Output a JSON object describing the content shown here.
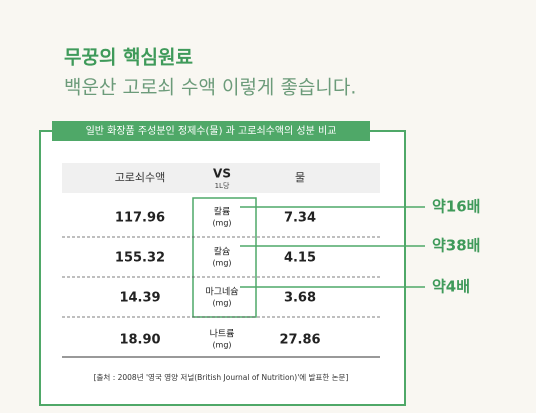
{
  "header": {
    "title": "무꿍의 핵심원료",
    "subtitle": "백운산 고로쇠 수액 이렇게 좋습니다."
  },
  "table": {
    "caption": "일반 화장품 주성분인 정제수(물) 과 고로쇠수액의 성분 비교",
    "columns": {
      "left": "고로쇠수액",
      "middle": "VS",
      "middle_sub": "1L당",
      "right": "물"
    },
    "rows": [
      {
        "left": "117.96",
        "name": "칼륨",
        "unit": "(mg)",
        "right": "7.34"
      },
      {
        "left": "155.32",
        "name": "칼슘",
        "unit": "(mg)",
        "right": "4.15"
      },
      {
        "left": "14.39",
        "name": "마그네슘",
        "unit": "(mg)",
        "right": "3.68"
      },
      {
        "left": "18.90",
        "name": "나트륨",
        "unit": "(mg)",
        "right": "27.86"
      }
    ],
    "source": "[출처 : 2008년 '영국 영양 저널(British Journal of Nutrition)'에 발표한 논문]"
  },
  "callouts": [
    "약16배",
    "약38배",
    "약4배"
  ]
}
